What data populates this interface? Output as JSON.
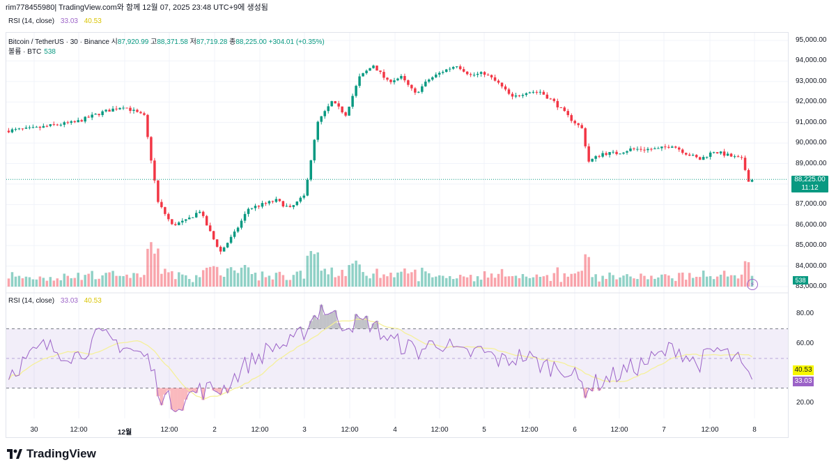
{
  "header": {
    "title": "rim778455980| TradingView.com와 함께 12월 07, 2025 23:48 UTC+9에 생성됨"
  },
  "rsi_top": {
    "label": "RSI (14, close)",
    "v1": "33.03",
    "v2": "40.53"
  },
  "legend": {
    "symbol": "Bitcoin / TetherUS · 30 · Binance",
    "o_label": "시",
    "o": "87,920.99",
    "h_label": "고",
    "h": "88,371.58",
    "l_label": "저",
    "l": "87,719.28",
    "c_label": "종",
    "c": "88,225.00",
    "change": "+304.01 (+0.35%)",
    "vol_label": "볼륨 · BTC",
    "vol": "538"
  },
  "price_axis": [
    "95,000.00",
    "94,000.00",
    "93,000.00",
    "92,000.00",
    "91,000.00",
    "90,000.00",
    "89,000.00",
    "88,000.00",
    "87,000.00",
    "86,000.00",
    "85,000.00",
    "84,000.00",
    "83,000.00"
  ],
  "price_tag": {
    "price": "88,225.00",
    "time": "11:12"
  },
  "vol_tag": "538",
  "rsi_axis": [
    "80.00",
    "60.00",
    "20.00"
  ],
  "rsi_panel": {
    "label": "RSI (14, close)",
    "v1": "33.03",
    "v2": "40.53"
  },
  "rsi_tags": {
    "ma": "40.53",
    "rsi": "33.03"
  },
  "time_axis": [
    "30",
    "12:00",
    "12월",
    "12:00",
    "2",
    "12:00",
    "3",
    "12:00",
    "4",
    "12:00",
    "5",
    "12:00",
    "6",
    "12:00",
    "7",
    "12:00",
    "8"
  ],
  "colors": {
    "up": "#089981",
    "down": "#f23645",
    "rsi": "#9b62c7",
    "rsi_ma": "#f7f7a0"
  },
  "logo": "TradingView",
  "chart_data": {
    "type": "candlestick",
    "title": "Bitcoin / TetherUS · 30 · Binance",
    "price_anchors": [
      [
        0,
        90600
      ],
      [
        8,
        90700
      ],
      [
        15,
        90900
      ],
      [
        20,
        91000
      ],
      [
        28,
        91500
      ],
      [
        34,
        91800
      ],
      [
        40,
        91300
      ],
      [
        44,
        87100
      ],
      [
        48,
        86000
      ],
      [
        52,
        86200
      ],
      [
        56,
        86700
      ],
      [
        60,
        85300
      ],
      [
        62,
        84700
      ],
      [
        66,
        85600
      ],
      [
        70,
        86800
      ],
      [
        74,
        87000
      ],
      [
        78,
        87200
      ],
      [
        82,
        86800
      ],
      [
        86,
        87400
      ],
      [
        90,
        91000
      ],
      [
        94,
        92000
      ],
      [
        98,
        91400
      ],
      [
        102,
        93200
      ],
      [
        106,
        93800
      ],
      [
        110,
        93000
      ],
      [
        114,
        93200
      ],
      [
        118,
        92400
      ],
      [
        122,
        93100
      ],
      [
        126,
        93500
      ],
      [
        130,
        93800
      ],
      [
        134,
        93300
      ],
      [
        138,
        93400
      ],
      [
        142,
        92900
      ],
      [
        146,
        92200
      ],
      [
        150,
        92500
      ],
      [
        154,
        92500
      ],
      [
        158,
        92000
      ],
      [
        162,
        91300
      ],
      [
        166,
        90700
      ],
      [
        168,
        89100
      ],
      [
        172,
        89500
      ],
      [
        176,
        89500
      ],
      [
        180,
        89700
      ],
      [
        184,
        89700
      ],
      [
        188,
        89700
      ],
      [
        192,
        89900
      ],
      [
        196,
        89500
      ],
      [
        200,
        89200
      ],
      [
        204,
        89600
      ],
      [
        208,
        89400
      ],
      [
        212,
        89200
      ],
      [
        214,
        88200
      ]
    ],
    "price_range": [
      83000,
      95000
    ],
    "rsi_anchors": [
      [
        0,
        40
      ],
      [
        10,
        58
      ],
      [
        20,
        52
      ],
      [
        26,
        65
      ],
      [
        32,
        60
      ],
      [
        40,
        50
      ],
      [
        44,
        25
      ],
      [
        48,
        18
      ],
      [
        54,
        28
      ],
      [
        62,
        30
      ],
      [
        68,
        45
      ],
      [
        76,
        58
      ],
      [
        82,
        60
      ],
      [
        86,
        72
      ],
      [
        90,
        85
      ],
      [
        96,
        74
      ],
      [
        104,
        74
      ],
      [
        110,
        62
      ],
      [
        118,
        55
      ],
      [
        124,
        62
      ],
      [
        130,
        52
      ],
      [
        136,
        55
      ],
      [
        142,
        48
      ],
      [
        148,
        52
      ],
      [
        154,
        45
      ],
      [
        160,
        44
      ],
      [
        166,
        30
      ],
      [
        170,
        34
      ],
      [
        178,
        42
      ],
      [
        186,
        50
      ],
      [
        192,
        58
      ],
      [
        198,
        46
      ],
      [
        204,
        56
      ],
      [
        210,
        48
      ],
      [
        214,
        33
      ]
    ],
    "rsi_range": [
      10,
      90
    ],
    "rsi_bands": [
      70,
      50,
      30
    ]
  }
}
